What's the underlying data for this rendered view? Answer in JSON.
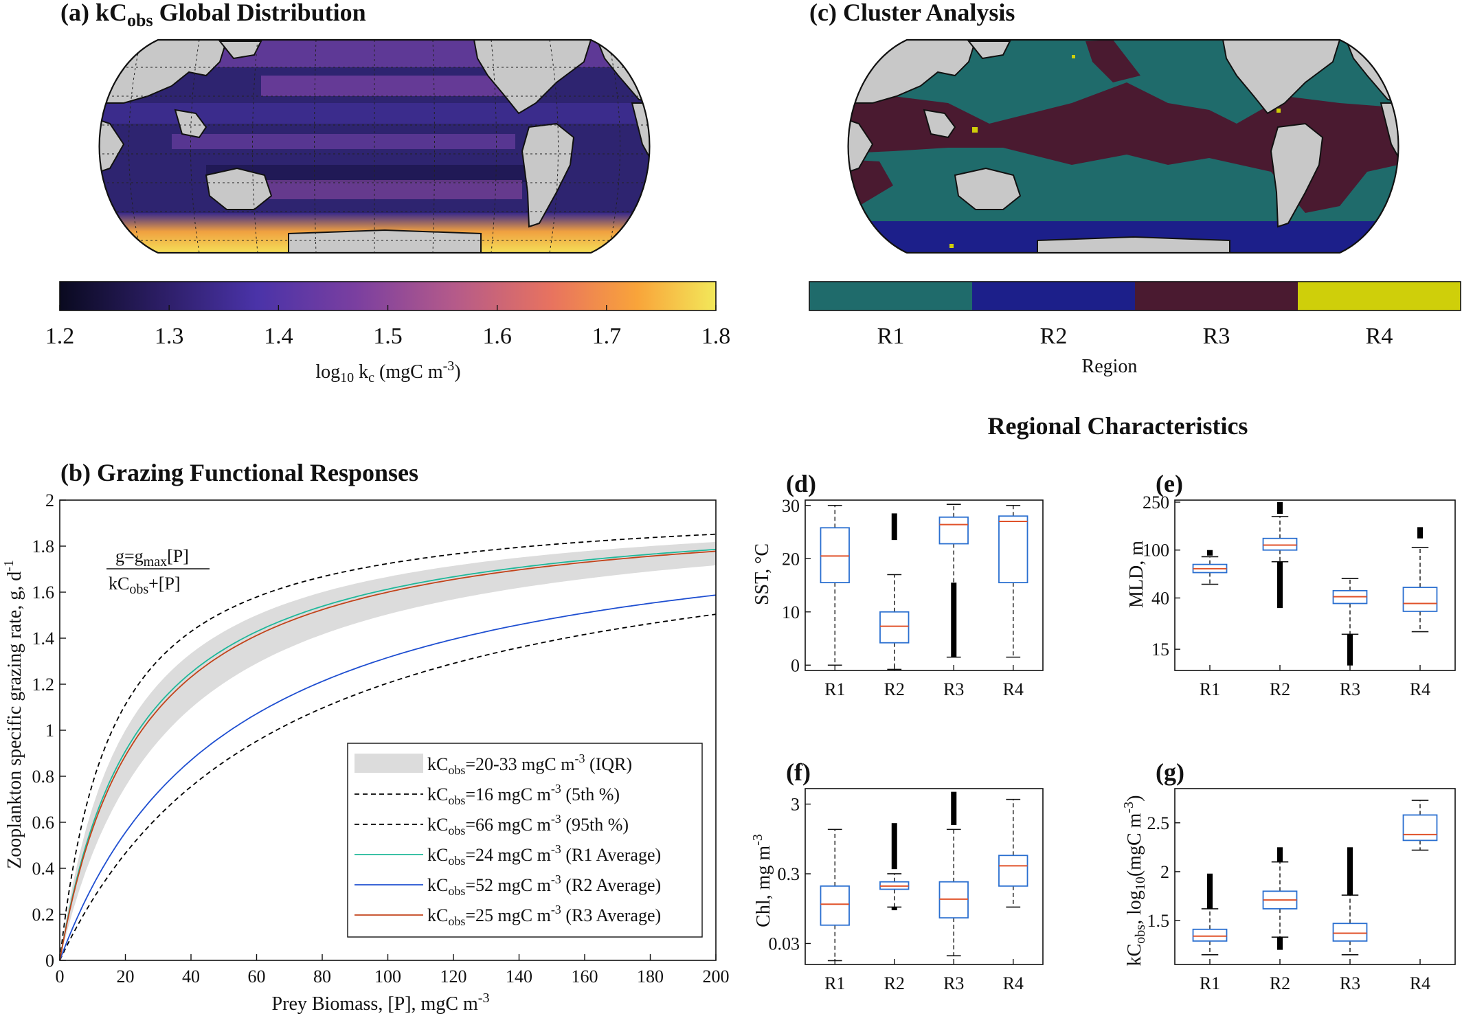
{
  "panels": {
    "a": {
      "title_prefix": "(a) kC",
      "title_sub": "obs",
      "title_suffix": " Global Distribution",
      "colorbar": {
        "ticks": [
          "1.2",
          "1.3",
          "1.4",
          "1.5",
          "1.6",
          "1.7",
          "1.8"
        ],
        "range": [
          1.2,
          1.8
        ],
        "label_prefix": "log",
        "label_sub": "10",
        "label_mid": " k",
        "label_sub2": "c",
        "label_suffix": " (mgC m",
        "label_sup": "-3",
        "label_end": ")",
        "colormap": [
          "#0a0a20",
          "#2b1d63",
          "#4a33a8",
          "#7a3fa0",
          "#b45a8a",
          "#e8735f",
          "#f9a43a",
          "#f2e85a"
        ]
      }
    },
    "c": {
      "title": "(c) Cluster Analysis",
      "regions": [
        {
          "label": "R1",
          "color": "#1f6b6b"
        },
        {
          "label": "R2",
          "color": "#1c1f8a"
        },
        {
          "label": "R3",
          "color": "#4a1a30"
        },
        {
          "label": "R4",
          "color": "#cfcf0a"
        }
      ],
      "xlabel": "Region"
    },
    "regional_title": "Regional Characteristics",
    "b": {
      "title": "(b) Grazing Functional Responses",
      "formula_num_prefix": "g=g",
      "formula_num_sub": "max",
      "formula_num_suffix": "[P]",
      "formula_den_prefix": "kC",
      "formula_den_sub": "obs",
      "formula_den_suffix": "+[P]",
      "legend": [
        {
          "pre": "kC",
          "sub": "obs",
          "mid": "=20-33 mgC m",
          "sup": "-3",
          "post": " (IQR)"
        },
        {
          "pre": "kC",
          "sub": "obs",
          "mid": "=16 mgC m",
          "sup": "-3",
          "post": " (5th %)"
        },
        {
          "pre": "kC",
          "sub": "obs",
          "mid": "=66 mgC m",
          "sup": "-3",
          "post": " (95th %)"
        },
        {
          "pre": "kC",
          "sub": "obs",
          "mid": "=24 mgC m",
          "sup": "-3",
          "post": " (R1 Average)"
        },
        {
          "pre": "kC",
          "sub": "obs",
          "mid": "=52 mgC m",
          "sup": "-3",
          "post": " (R2 Average)"
        },
        {
          "pre": "kC",
          "sub": "obs",
          "mid": "=25 mgC m",
          "sup": "-3",
          "post": " (R3 Average)"
        }
      ]
    },
    "boxes": {
      "d": {
        "title": "(d)",
        "ylabel": "SST, °C"
      },
      "e": {
        "title": "(e)",
        "ylabel": "MLD, m"
      },
      "f": {
        "title": "(f)",
        "ylabel": "Chl, mg m"
      },
      "g": {
        "title": "(g)",
        "ylabel": "kC"
      }
    }
  },
  "chart_data": [
    {
      "type": "line",
      "panel": "b",
      "title": "(b) Grazing Functional Responses",
      "xlabel": "Prey Biomass, [P], mgC m-3",
      "ylabel": "Zooplankton specific grazing rate, g, d-1",
      "xlim": [
        0,
        200
      ],
      "ylim": [
        0,
        2
      ],
      "xticks": [
        0,
        20,
        40,
        60,
        80,
        100,
        120,
        140,
        160,
        180,
        200
      ],
      "yticks": [
        0,
        0.2,
        0.4,
        0.6,
        0.8,
        1,
        1.2,
        1.4,
        1.6,
        1.8,
        2
      ],
      "gmax": 2,
      "band": {
        "k_low": 20,
        "k_high": 33,
        "color": "#dcdcdc"
      },
      "series": [
        {
          "name": "kCobs=16 mgC m-3 (5th %)",
          "k": 16,
          "color": "#000000",
          "dash": true
        },
        {
          "name": "kCobs=66 mgC m-3 (95th %)",
          "k": 66,
          "color": "#000000",
          "dash": true
        },
        {
          "name": "kCobs=24 mgC m-3 (R1 Average)",
          "k": 24,
          "color": "#1fb89a",
          "dash": false
        },
        {
          "name": "kCobs=52 mgC m-3 (R2 Average)",
          "k": 52,
          "color": "#1f4fd1",
          "dash": false
        },
        {
          "name": "kCobs=25 mgC m-3 (R3 Average)",
          "k": 25,
          "color": "#c2431a",
          "dash": false
        }
      ],
      "legend_position": "lower-right"
    },
    {
      "type": "box",
      "panel": "d",
      "ylabel": "SST, °C",
      "scale": "linear",
      "ylim": [
        -1,
        31
      ],
      "yticks": [
        0,
        10,
        20,
        30
      ],
      "categories": [
        "R1",
        "R2",
        "R3",
        "R4"
      ],
      "boxes": [
        {
          "min": 0,
          "q1": 15.5,
          "median": 20.5,
          "q3": 25.8,
          "max": 30,
          "outliers": []
        },
        {
          "min": -0.8,
          "q1": 4.2,
          "median": 7.3,
          "q3": 10,
          "max": 17,
          "outliers": [
            [
              23.5,
              28.5
            ]
          ]
        },
        {
          "min": 1.5,
          "q1": 22.8,
          "median": 26.4,
          "q3": 27.8,
          "max": 30.2,
          "outliers": [
            [
              1.5,
              15.5
            ]
          ]
        },
        {
          "min": 1.5,
          "q1": 15.5,
          "median": 27,
          "q3": 28,
          "max": 30,
          "outliers": []
        }
      ]
    },
    {
      "type": "box",
      "panel": "e",
      "ylabel": "MLD, m",
      "scale": "log",
      "ylim": [
        10,
        260
      ],
      "yticks": [
        15,
        40,
        100,
        250
      ],
      "categories": [
        "R1",
        "R2",
        "R3",
        "R4"
      ],
      "boxes": [
        {
          "min": 52,
          "q1": 65,
          "median": 70,
          "q3": 76,
          "max": 88,
          "outliers": [
            [
              90,
              100
            ]
          ]
        },
        {
          "min": 80,
          "q1": 100,
          "median": 110,
          "q3": 125,
          "max": 190,
          "outliers": [
            [
              33,
              80
            ],
            [
              200,
              250
            ]
          ]
        },
        {
          "min": 20,
          "q1": 36,
          "median": 41,
          "q3": 46,
          "max": 58,
          "outliers": [
            [
              11,
              20
            ]
          ]
        },
        {
          "min": 21,
          "q1": 31,
          "median": 36,
          "q3": 49,
          "max": 105,
          "outliers": [
            [
              125,
              155
            ]
          ]
        }
      ]
    },
    {
      "type": "box",
      "panel": "f",
      "ylabel": "Chl, mg m-3",
      "scale": "log",
      "ylim": [
        0.015,
        5
      ],
      "yticks": [
        0.03,
        0.3,
        3
      ],
      "categories": [
        "R1",
        "R2",
        "R3",
        "R4"
      ],
      "boxes": [
        {
          "min": 0.017,
          "q1": 0.055,
          "median": 0.11,
          "q3": 0.2,
          "max": 1.3,
          "outliers": []
        },
        {
          "min": 0.1,
          "q1": 0.18,
          "median": 0.2,
          "q3": 0.23,
          "max": 0.3,
          "outliers": [
            [
              0.09,
              0.1
            ],
            [
              0.35,
              1.6
            ]
          ]
        },
        {
          "min": 0.02,
          "q1": 0.07,
          "median": 0.13,
          "q3": 0.23,
          "max": 1.3,
          "outliers": [
            [
              1.5,
              4.5
            ]
          ]
        },
        {
          "min": 0.1,
          "q1": 0.2,
          "median": 0.39,
          "q3": 0.55,
          "max": 3.5,
          "outliers": []
        }
      ]
    },
    {
      "type": "box",
      "panel": "g",
      "ylabel": "kCobs, log10(mgC m-3)",
      "scale": "linear",
      "ylim": [
        1.05,
        2.85
      ],
      "yticks": [
        1.5,
        2,
        2.5
      ],
      "categories": [
        "R1",
        "R2",
        "R3",
        "R4"
      ],
      "boxes": [
        {
          "min": 1.15,
          "q1": 1.29,
          "median": 1.34,
          "q3": 1.41,
          "max": 1.62,
          "outliers": [
            [
              1.62,
              1.98
            ]
          ]
        },
        {
          "min": 1.33,
          "q1": 1.62,
          "median": 1.71,
          "q3": 1.8,
          "max": 2.1,
          "outliers": [
            [
              1.2,
              1.33
            ],
            [
              2.1,
              2.25
            ]
          ]
        },
        {
          "min": 1.15,
          "q1": 1.29,
          "median": 1.37,
          "q3": 1.47,
          "max": 1.76,
          "outliers": [
            [
              1.76,
              2.25
            ]
          ]
        },
        {
          "min": 2.22,
          "q1": 2.32,
          "median": 2.38,
          "q3": 2.58,
          "max": 2.73,
          "outliers": []
        }
      ]
    }
  ]
}
